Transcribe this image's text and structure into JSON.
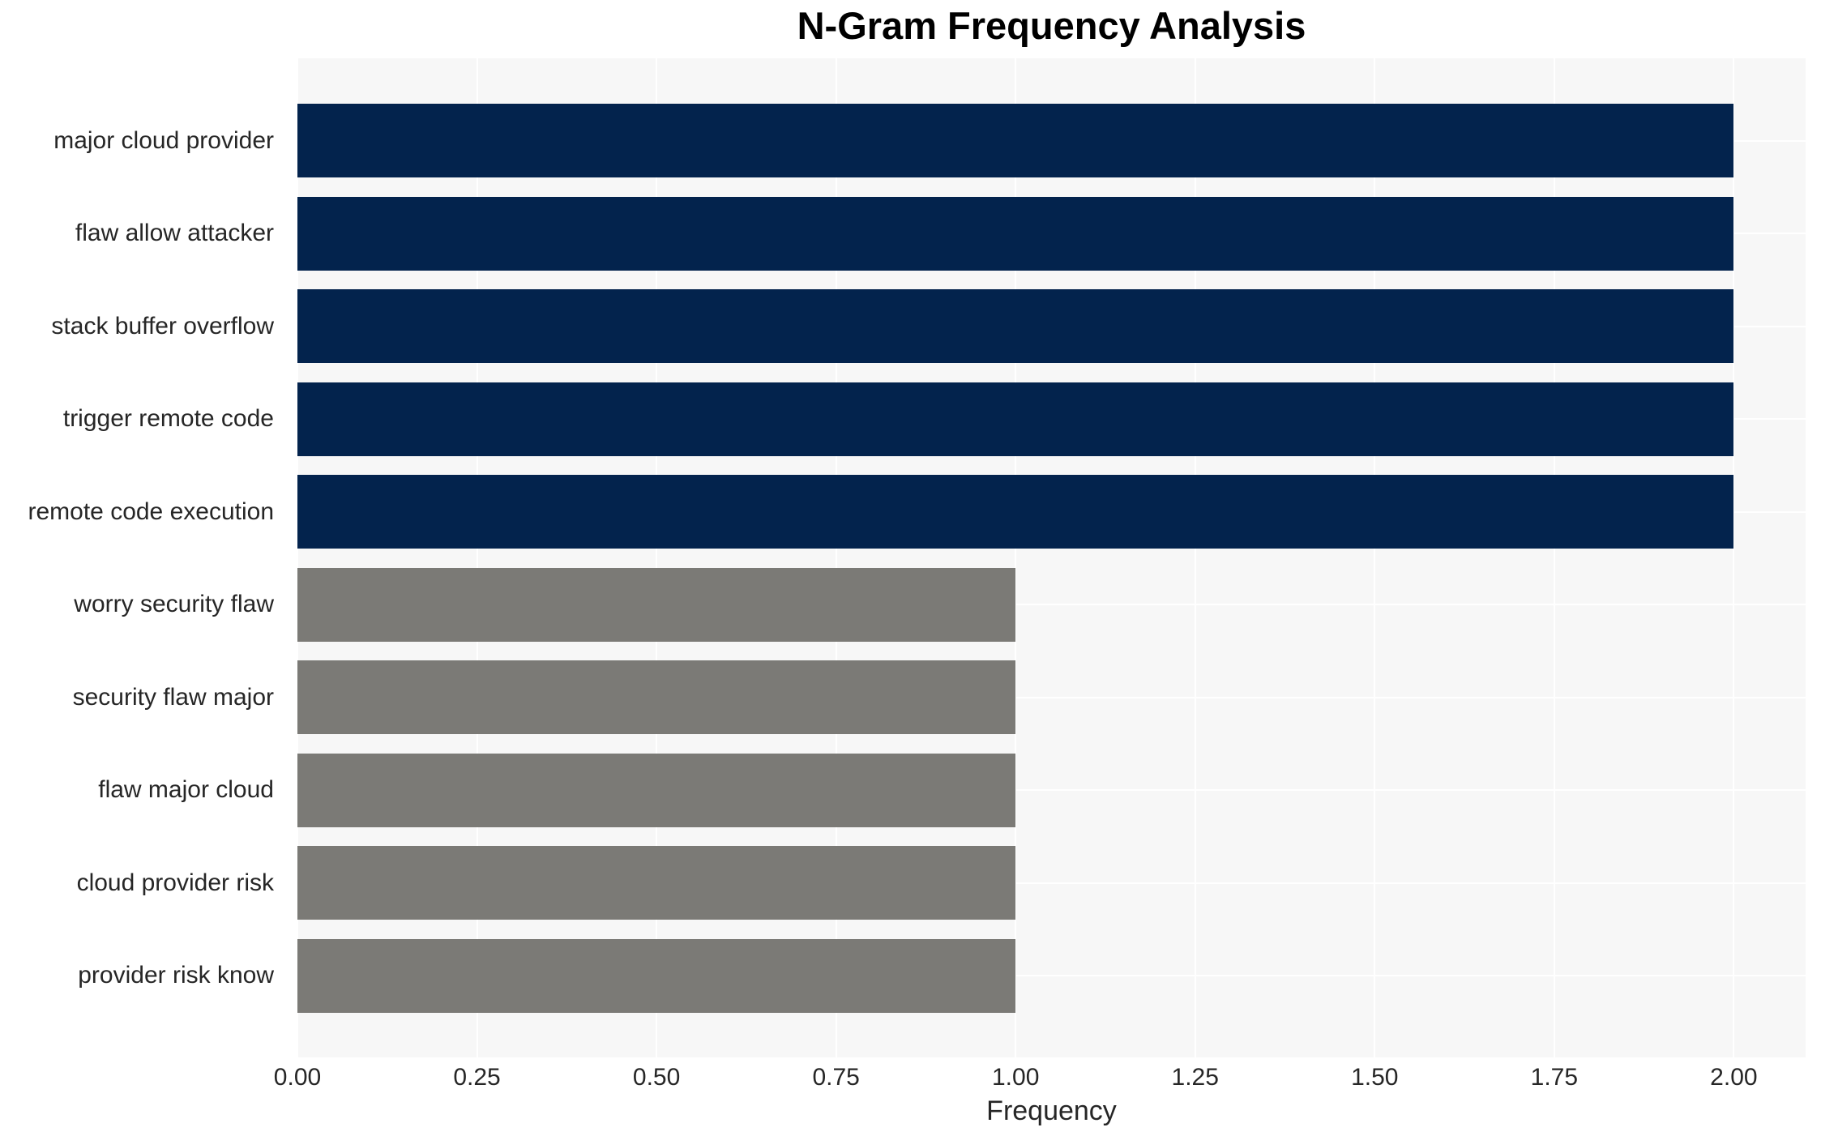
{
  "chart_data": {
    "type": "bar",
    "orientation": "horizontal",
    "title": "N-Gram Frequency Analysis",
    "xlabel": "Frequency",
    "ylabel": "",
    "categories": [
      "major cloud provider",
      "flaw allow attacker",
      "stack buffer overflow",
      "trigger remote code",
      "remote code execution",
      "worry security flaw",
      "security flaw major",
      "flaw major cloud",
      "cloud provider risk",
      "provider risk know"
    ],
    "values": [
      2,
      2,
      2,
      2,
      2,
      1,
      1,
      1,
      1,
      1
    ],
    "bar_colors": [
      "#03234d",
      "#03234d",
      "#03234d",
      "#03234d",
      "#03234d",
      "#7b7a76",
      "#7b7a76",
      "#7b7a76",
      "#7b7a76",
      "#7b7a76"
    ],
    "xticks": [
      "0.00",
      "0.25",
      "0.50",
      "0.75",
      "1.00",
      "1.25",
      "1.50",
      "1.75",
      "2.00"
    ],
    "xtick_values": [
      0,
      0.25,
      0.5,
      0.75,
      1.0,
      1.25,
      1.5,
      1.75,
      2.0
    ],
    "xlim": [
      0,
      2.1
    ],
    "grid": true,
    "legend": "none",
    "colors": {
      "bar_high": "#03234d",
      "bar_low": "#7b7a76",
      "plot_background": "#f7f7f7",
      "gridline": "#ffffff",
      "tick_text": "#262626",
      "title_text": "#000000"
    }
  }
}
